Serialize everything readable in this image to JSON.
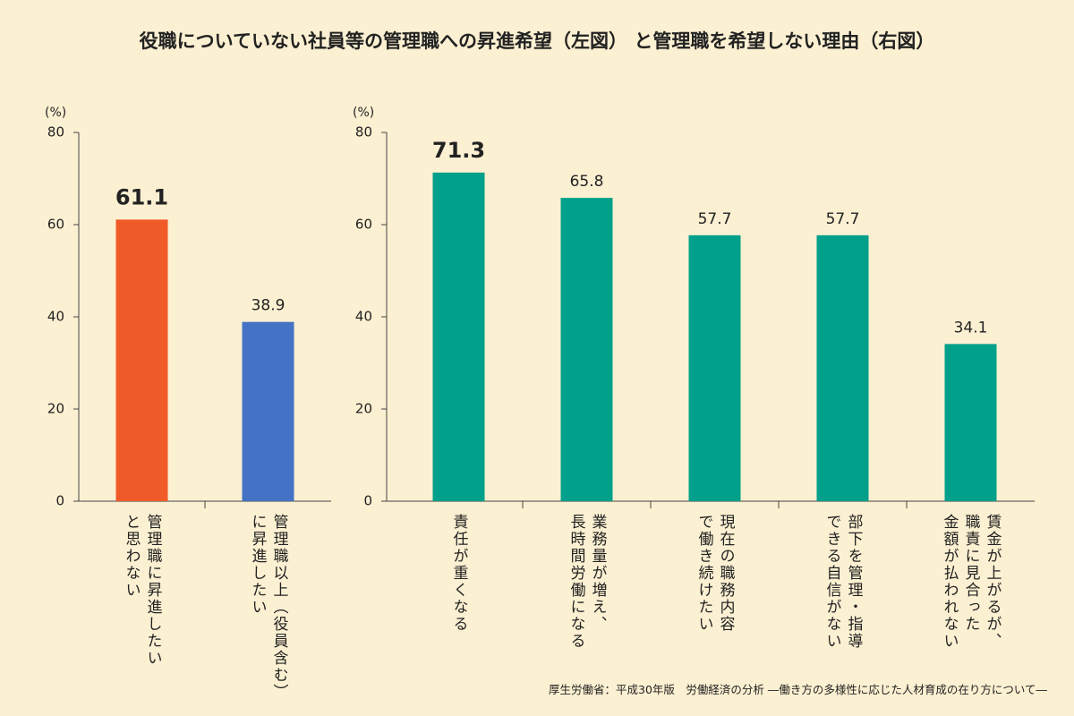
{
  "title": "役職についていない社員等の管理職への昇進希望（左図） と管理職を希望しない理由（右図）",
  "source": "厚生労働省：平成30年版　労働経済の分析 ―働き方の多様性に応じた人材育成の在り方について―",
  "chart_data": [
    {
      "type": "bar",
      "y_label": "(%)",
      "categories": [
        "管理職に昇進したい\nと思わない",
        "管理職以上（役員含む）\nに昇進したい"
      ],
      "values": [
        61.1,
        38.9
      ],
      "colors": [
        "#f05a28",
        "#4472c4"
      ],
      "ylim": [
        0,
        80
      ],
      "yticks": [
        0,
        20,
        40,
        60,
        80
      ]
    },
    {
      "type": "bar",
      "y_label": "(%)",
      "categories": [
        "責任が重くなる",
        "業務量が増え、\n長時間労働になる",
        "現在の職務内容\nで働き続けたい",
        "部下を管理・指導\nできる自信がない",
        "賃金が上がるが、\n職責に見合った\n金額が払われない"
      ],
      "values": [
        71.3,
        65.8,
        57.7,
        57.7,
        34.1
      ],
      "color": "#00a08a",
      "ylim": [
        0,
        80
      ],
      "yticks": [
        0,
        20,
        40,
        60,
        80
      ]
    }
  ]
}
